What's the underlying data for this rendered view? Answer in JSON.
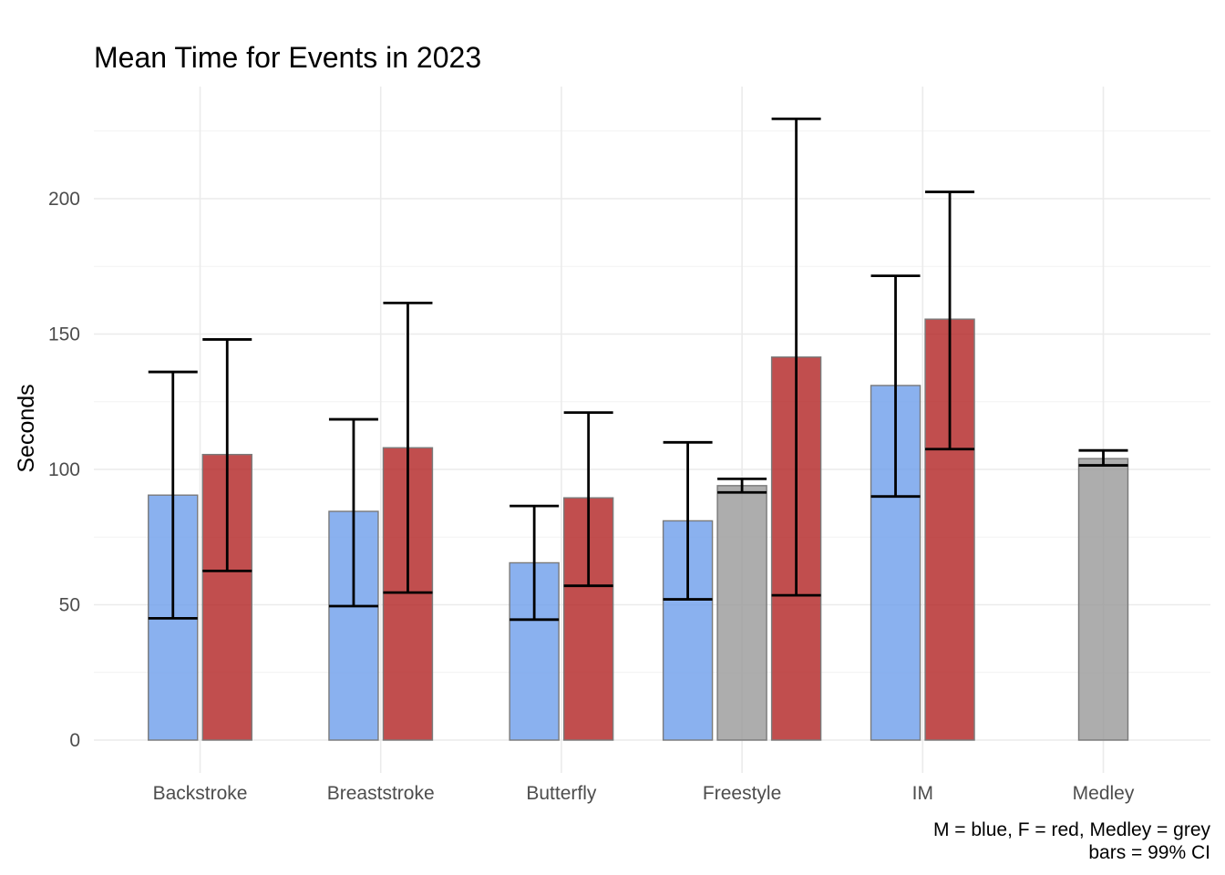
{
  "colors": {
    "male": "#6d9eeb",
    "female": "#b22222",
    "medley": "#999999"
  },
  "chart_data": {
    "type": "bar",
    "title": "Mean Time for Events in 2023",
    "xlabel": "",
    "ylabel": "Seconds",
    "ylim": [
      -10,
      232
    ],
    "yticks": [
      0,
      50,
      100,
      150,
      200
    ],
    "grid": true,
    "categories": [
      "Backstroke",
      "Breaststroke",
      "Butterfly",
      "Freestyle",
      "IM",
      "Medley"
    ],
    "bars": [
      {
        "category": "Backstroke",
        "group": "M",
        "value": 90.5,
        "ci_low": 45,
        "ci_high": 136
      },
      {
        "category": "Backstroke",
        "group": "F",
        "value": 105.5,
        "ci_low": 62.5,
        "ci_high": 148
      },
      {
        "category": "Breaststroke",
        "group": "M",
        "value": 84.5,
        "ci_low": 49.5,
        "ci_high": 118.5
      },
      {
        "category": "Breaststroke",
        "group": "F",
        "value": 108,
        "ci_low": 54.5,
        "ci_high": 161.5
      },
      {
        "category": "Butterfly",
        "group": "M",
        "value": 65.5,
        "ci_low": 44.5,
        "ci_high": 86.5
      },
      {
        "category": "Butterfly",
        "group": "F",
        "value": 89.5,
        "ci_low": 57,
        "ci_high": 121
      },
      {
        "category": "Freestyle",
        "group": "M",
        "value": 81,
        "ci_low": 52,
        "ci_high": 110
      },
      {
        "category": "Freestyle",
        "group": "Medley",
        "value": 94,
        "ci_low": 91.5,
        "ci_high": 96.5
      },
      {
        "category": "Freestyle",
        "group": "F",
        "value": 141.5,
        "ci_low": 53.5,
        "ci_high": 229.5
      },
      {
        "category": "IM",
        "group": "M",
        "value": 131,
        "ci_low": 90,
        "ci_high": 171.5
      },
      {
        "category": "IM",
        "group": "F",
        "value": 155.5,
        "ci_low": 107.5,
        "ci_high": 202.5
      },
      {
        "category": "Medley",
        "group": "Medley",
        "value": 104,
        "ci_low": 101.5,
        "ci_high": 107
      }
    ],
    "caption_lines": [
      "M = blue, F = red, Medley = grey",
      "bars = 99% CI"
    ]
  }
}
